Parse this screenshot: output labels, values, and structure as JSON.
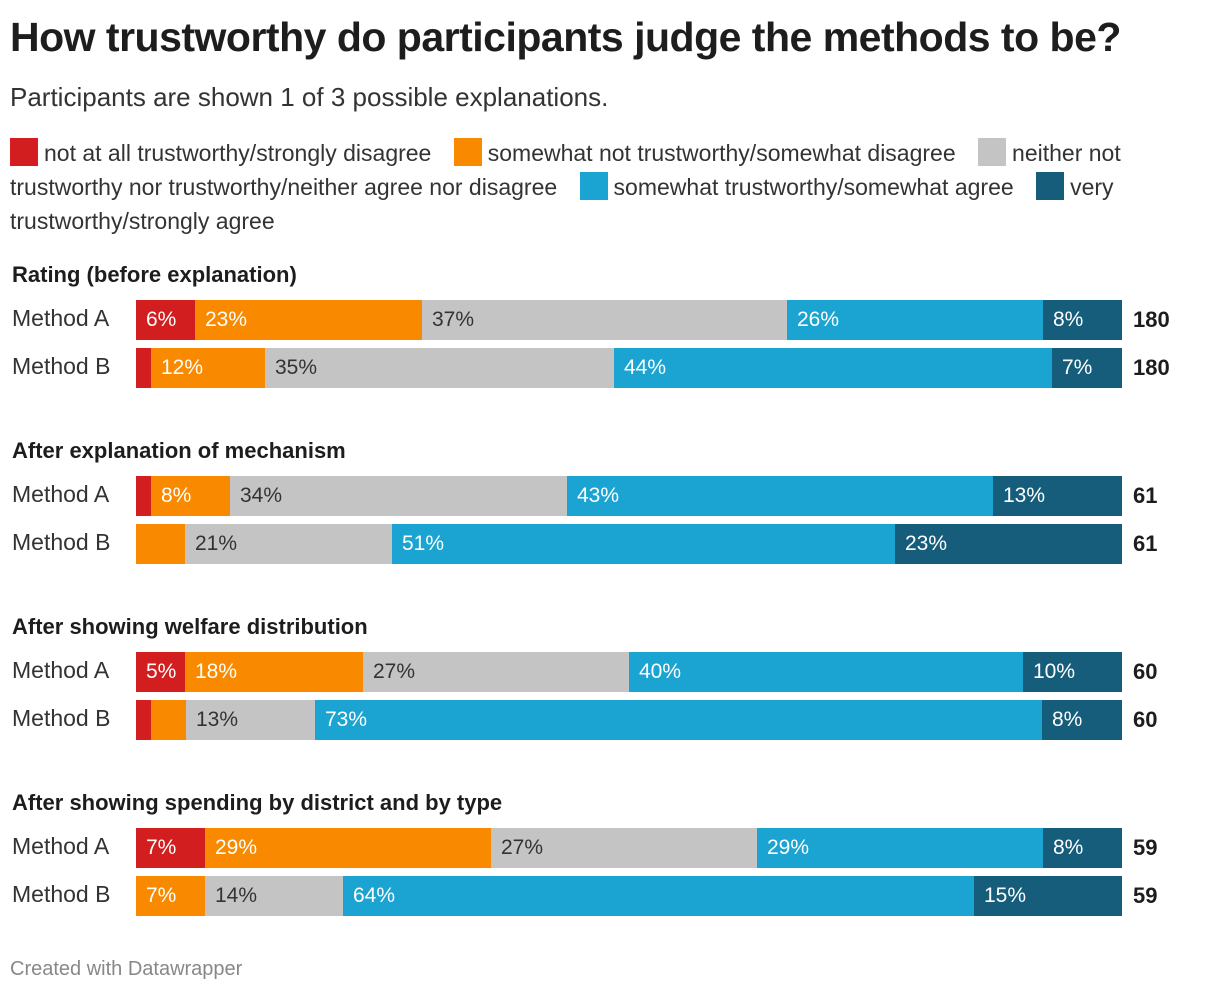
{
  "title": "How trustworthy do participants judge the methods to be?",
  "subtitle": "Participants are shown 1 of 3 possible explanations.",
  "legend": [
    {
      "label": "not at all trustworthy/strongly disagree",
      "color": "#d21e1e"
    },
    {
      "label": "somewhat not trustworthy/somewhat disagree",
      "color": "#f98a00"
    },
    {
      "label": "neither not trustworthy nor trustworthy/neither agree nor disagree",
      "color": "#c4c4c4"
    },
    {
      "label": "somewhat trustworthy/somewhat agree",
      "color": "#1ba4d1"
    },
    {
      "label": "very trustworthy/strongly agree",
      "color": "#155d7a"
    }
  ],
  "footer": "Created with Datawrapper",
  "chart_data": {
    "type": "bar",
    "orientation": "horizontal",
    "stacked": true,
    "xlim": [
      0,
      100
    ],
    "series_names": [
      "not at all trustworthy/strongly disagree",
      "somewhat not trustworthy/somewhat disagree",
      "neither not trustworthy nor trustworthy/neither agree nor disagree",
      "somewhat trustworthy/somewhat agree",
      "very trustworthy/strongly agree"
    ],
    "groups": [
      {
        "title": "Rating (before explanation)",
        "rows": [
          {
            "label": "Method A",
            "values": [
              6,
              23,
              37,
              26,
              8
            ],
            "display": [
              "6%",
              "23%",
              "37%",
              "26%",
              "8%"
            ],
            "total": "180"
          },
          {
            "label": "Method B",
            "values": [
              1.5,
              11.5,
              35,
              44,
              7
            ],
            "display": [
              "",
              "12%",
              "35%",
              "44%",
              "7%"
            ],
            "total": "180"
          }
        ]
      },
      {
        "title": "After explanation of mechanism",
        "rows": [
          {
            "label": "Method A",
            "values": [
              1.5,
              8,
              34,
              43,
              13
            ],
            "display": [
              "",
              "8%",
              "34%",
              "43%",
              "13%"
            ],
            "total": "61"
          },
          {
            "label": "Method B",
            "values": [
              0,
              5,
              21,
              51,
              23
            ],
            "display": [
              "",
              "",
              "21%",
              "51%",
              "23%"
            ],
            "total": "61"
          }
        ]
      },
      {
        "title": "After showing welfare distribution",
        "rows": [
          {
            "label": "Method A",
            "values": [
              5,
              18,
              27,
              40,
              10
            ],
            "display": [
              "5%",
              "18%",
              "27%",
              "40%",
              "10%"
            ],
            "total": "60"
          },
          {
            "label": "Method B",
            "values": [
              1.5,
              3.5,
              13,
              73,
              8
            ],
            "display": [
              "",
              "",
              "13%",
              "73%",
              "8%"
            ],
            "total": "60"
          }
        ]
      },
      {
        "title": "After showing spending by district and by type",
        "rows": [
          {
            "label": "Method A",
            "values": [
              7,
              29,
              27,
              29,
              8
            ],
            "display": [
              "7%",
              "29%",
              "27%",
              "29%",
              "8%"
            ],
            "total": "59"
          },
          {
            "label": "Method B",
            "values": [
              0,
              7,
              14,
              64,
              15
            ],
            "display": [
              "",
              "7%",
              "14%",
              "64%",
              "15%"
            ],
            "total": "59"
          }
        ]
      }
    ]
  }
}
